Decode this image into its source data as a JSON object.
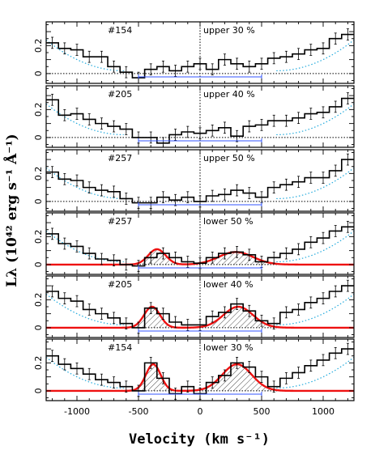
{
  "chart_data": {
    "type": "line",
    "xlabel": "Velocity (km s⁻¹)",
    "ylabel": "Lλ (10⁴² erg s⁻¹ Å⁻¹)",
    "xlim": [
      -1250,
      1250
    ],
    "ylim": [
      -0.07,
      0.37
    ],
    "x_ticks": [
      "-1000",
      "-500",
      "0",
      "500",
      "1000"
    ],
    "y_ticks": [
      "0",
      "0.2"
    ],
    "bin_width": 100,
    "bin_centers": [
      -1200,
      -1100,
      -1000,
      -900,
      -800,
      -700,
      -600,
      -500,
      -400,
      -300,
      -200,
      -100,
      0,
      100,
      200,
      300,
      400,
      500,
      600,
      700,
      800,
      900,
      1000,
      1100,
      1200
    ],
    "window_kms": [
      -500,
      500
    ],
    "colors": {
      "data": "#000000",
      "model": "#ee1111",
      "window": "#3355ff",
      "continuum": "#22aadd"
    },
    "panels": [
      {
        "id": "#154",
        "label": "upper 30 %",
        "model": false,
        "values": [
          0.22,
          0.18,
          0.17,
          0.12,
          0.12,
          0.05,
          0.01,
          -0.03,
          0.03,
          0.05,
          0.02,
          0.05,
          0.07,
          0.03,
          0.1,
          0.07,
          0.05,
          0.07,
          0.11,
          0.12,
          0.14,
          0.17,
          0.18,
          0.25,
          0.28
        ]
      },
      {
        "id": "#205",
        "label": "upper 40 %",
        "model": false,
        "values": [
          0.27,
          0.16,
          0.17,
          0.13,
          0.1,
          0.08,
          0.06,
          0.0,
          0.0,
          -0.04,
          0.02,
          0.04,
          0.03,
          0.05,
          0.07,
          0.01,
          0.08,
          0.09,
          0.12,
          0.12,
          0.14,
          0.17,
          0.18,
          0.22,
          0.28
        ]
      },
      {
        "id": "#257",
        "label": "upper 50 %",
        "model": false,
        "values": [
          0.21,
          0.16,
          0.15,
          0.1,
          0.08,
          0.07,
          0.02,
          -0.01,
          -0.01,
          0.03,
          0.01,
          0.03,
          0.0,
          0.04,
          0.05,
          0.08,
          0.06,
          0.03,
          0.1,
          0.12,
          0.14,
          0.17,
          0.17,
          0.22,
          0.3
        ]
      },
      {
        "id": "#257",
        "label": "lower 50 %",
        "model": true,
        "values": [
          0.22,
          0.15,
          0.13,
          0.08,
          0.04,
          0.03,
          0.0,
          -0.01,
          0.05,
          0.08,
          0.05,
          0.02,
          0.01,
          0.05,
          0.08,
          0.09,
          0.07,
          0.02,
          0.05,
          0.08,
          0.11,
          0.16,
          0.19,
          0.24,
          0.27
        ],
        "model_components": [
          {
            "center": -350,
            "amp": 0.11,
            "sigma": 70
          },
          {
            "center": 290,
            "amp": 0.09,
            "sigma": 140
          }
        ]
      },
      {
        "id": "#205",
        "label": "lower 40 %",
        "model": true,
        "values": [
          0.26,
          0.21,
          0.19,
          0.13,
          0.1,
          0.07,
          0.03,
          0.0,
          0.14,
          0.1,
          0.04,
          0.02,
          0.02,
          0.08,
          0.11,
          0.17,
          0.12,
          0.05,
          0.03,
          0.11,
          0.13,
          0.18,
          0.21,
          0.26,
          0.3
        ],
        "model_components": [
          {
            "center": -390,
            "amp": 0.15,
            "sigma": 65
          },
          {
            "center": 310,
            "amp": 0.15,
            "sigma": 120
          }
        ]
      },
      {
        "id": "#154",
        "label": "lower 30 %",
        "model": true,
        "values": [
          0.25,
          0.19,
          0.16,
          0.12,
          0.08,
          0.06,
          0.03,
          0.0,
          0.2,
          0.09,
          -0.02,
          0.03,
          -0.02,
          0.06,
          0.11,
          0.2,
          0.17,
          0.1,
          0.03,
          0.09,
          0.13,
          0.18,
          0.22,
          0.27,
          0.3
        ],
        "model_components": [
          {
            "center": -380,
            "amp": 0.19,
            "sigma": 60
          },
          {
            "center": 300,
            "amp": 0.19,
            "sigma": 120
          }
        ]
      }
    ]
  }
}
